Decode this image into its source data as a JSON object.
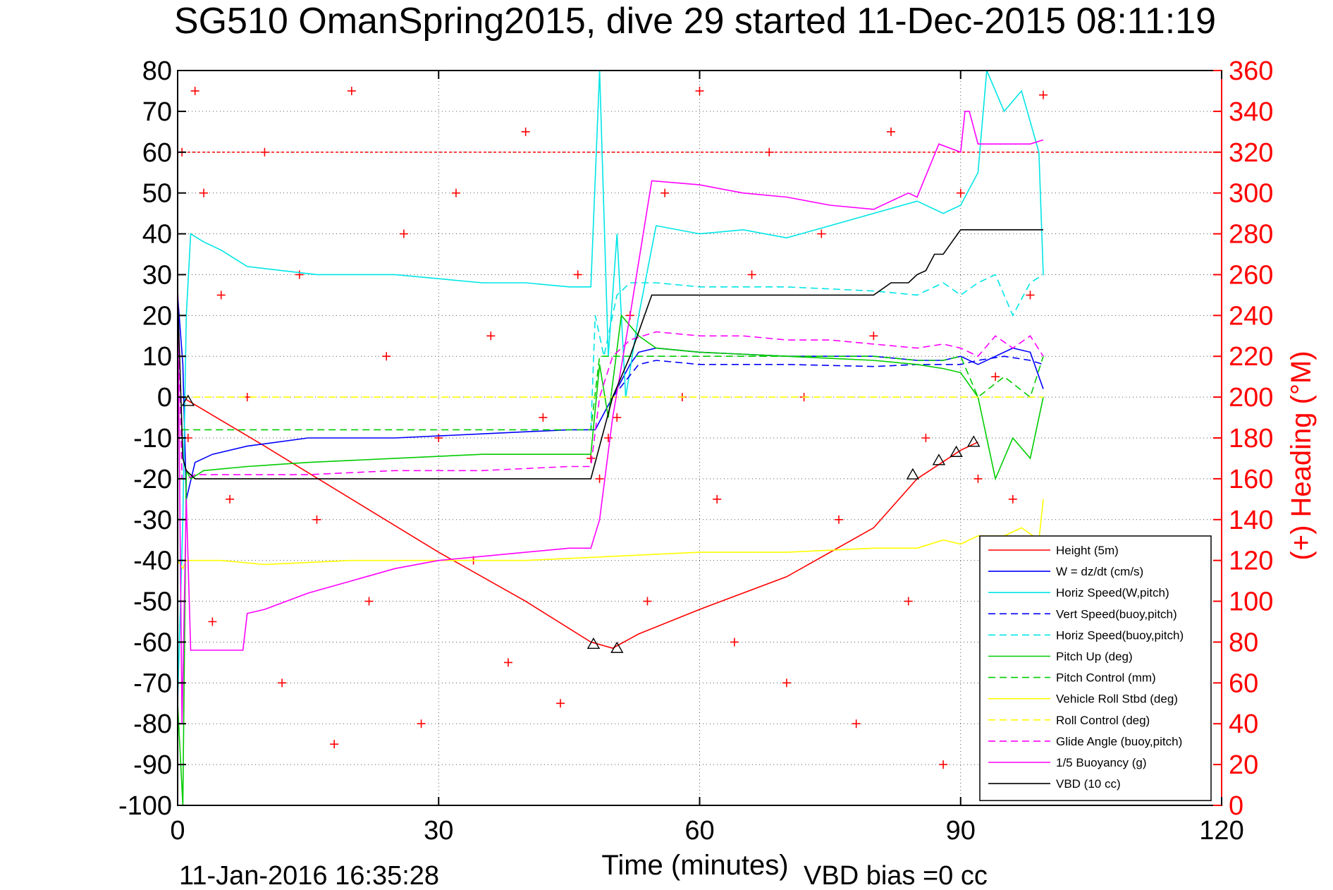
{
  "chart_data": {
    "type": "line",
    "title": "SG510 OmanSpring2015, dive 29 started 11-Dec-2015 08:11:19",
    "xlabel": "Time (minutes)",
    "ylabel_left": "",
    "ylabel_right": "(+) Heading (°M)",
    "xlim": [
      0,
      120
    ],
    "ylim_left": [
      -100,
      80
    ],
    "ylim_right": [
      0,
      360
    ],
    "x_ticks": [
      "0",
      "30",
      "60",
      "90",
      "120"
    ],
    "y_ticks_left": [
      "80",
      "70",
      "60",
      "50",
      "40",
      "30",
      "20",
      "10",
      "0",
      "-10",
      "-20",
      "-30",
      "-40",
      "-50",
      "-60",
      "-70",
      "-80",
      "-90",
      "-100"
    ],
    "y_ticks_right": [
      "360",
      "340",
      "320",
      "300",
      "280",
      "260",
      "240",
      "220",
      "200",
      "180",
      "160",
      "140",
      "120",
      "100",
      "80",
      "60",
      "40",
      "20",
      "0"
    ],
    "grid": true,
    "legend_position": "bottom-right",
    "footer_date": "11-Jan-2016 16:35:28",
    "footer_note": "VBD bias =0 cc",
    "colors": {
      "red": "#ff0000",
      "blue": "#0000ff",
      "cyan": "#00e5e5",
      "green": "#00cc00",
      "yellow": "#ffff00",
      "magenta": "#ff00ff",
      "black": "#000000"
    },
    "series": [
      {
        "name": "Height (5m)",
        "color": "#ff0000",
        "dash": false,
        "x": [
          0.5,
          10,
          20,
          30,
          40,
          47.5,
          50,
          53,
          60,
          70,
          80,
          85,
          90,
          92
        ],
        "y": [
          0,
          -12,
          -25,
          -38,
          -50,
          -60,
          -61.5,
          -58,
          -52,
          -44,
          -32,
          -20,
          -13,
          -11
        ]
      },
      {
        "name": "W = dz/dt (cm/s)",
        "color": "#0000ff",
        "dash": false,
        "x": [
          0,
          0.6,
          1,
          2,
          4,
          8,
          15,
          25,
          35,
          45,
          48,
          49,
          50,
          51,
          52,
          53,
          55,
          60,
          70,
          80,
          85,
          88,
          90,
          92,
          94,
          96,
          98,
          99.5
        ],
        "y": [
          25,
          8,
          -25,
          -16,
          -14,
          -12,
          -10,
          -10,
          -9,
          -8,
          -8,
          -4,
          0,
          4,
          8,
          11,
          12,
          11,
          10,
          10,
          9,
          9,
          10,
          8,
          10,
          12,
          11,
          2
        ]
      },
      {
        "name": "Horiz Speed(W,pitch)",
        "color": "#00e5e5",
        "dash": false,
        "x": [
          0,
          0.6,
          1,
          1.5,
          3,
          5,
          8,
          12,
          16,
          20,
          25,
          30,
          35,
          40,
          45,
          47.5,
          48.5,
          49.5,
          50.5,
          51.5,
          53,
          55,
          60,
          65,
          70,
          75,
          80,
          85,
          88,
          90,
          92,
          93,
          95,
          97,
          99,
          99.5
        ],
        "y": [
          -75,
          -30,
          20,
          40,
          38,
          36,
          32,
          31,
          30,
          30,
          30,
          29,
          28,
          28,
          27,
          27,
          80,
          10,
          40,
          0,
          20,
          42,
          40,
          41,
          39,
          42,
          45,
          48,
          45,
          47,
          55,
          80,
          70,
          75,
          60,
          30
        ]
      },
      {
        "name": "Vert Speed(buoy,pitch)",
        "color": "#0000ff",
        "dash": true,
        "x": [
          50,
          53,
          55,
          60,
          70,
          80,
          85,
          90,
          92,
          95,
          98,
          99.5
        ],
        "y": [
          0,
          8,
          9,
          8,
          8,
          7.5,
          8,
          8,
          9,
          10,
          9,
          8
        ]
      },
      {
        "name": "Horiz Speed(buoy,pitch)",
        "color": "#00e5e5",
        "dash": true,
        "x": [
          47.5,
          48,
          49,
          50.5,
          52,
          53,
          55,
          60,
          70,
          80,
          85,
          88,
          90,
          92,
          94,
          96,
          98,
          99.5
        ],
        "y": [
          -8,
          20,
          10,
          25,
          28,
          28,
          28,
          27,
          27,
          26,
          25,
          28,
          25,
          28,
          30,
          20,
          28,
          30
        ]
      },
      {
        "name": "Pitch Up (deg)",
        "color": "#00cc00",
        "dash": false,
        "x": [
          0,
          0.6,
          1,
          1.5,
          3,
          8,
          15,
          25,
          35,
          45,
          47.5,
          48.5,
          49.5,
          51,
          53,
          55,
          60,
          70,
          80,
          85,
          88,
          90,
          92,
          94,
          96,
          98,
          99.5
        ],
        "y": [
          -75,
          -100,
          -18,
          -20,
          -18,
          -17,
          -16,
          -15,
          -14,
          -14,
          -14,
          8,
          -5,
          20,
          15,
          12,
          11,
          10,
          9,
          8,
          7,
          6,
          0,
          -20,
          -10,
          -15,
          0
        ]
      },
      {
        "name": "Pitch Control (mm)",
        "color": "#00cc00",
        "dash": true,
        "x": [
          0.5,
          2,
          10,
          20,
          30,
          40,
          47.5,
          48.5,
          50,
          52,
          55,
          60,
          70,
          80,
          85,
          88,
          90,
          92,
          95,
          98,
          99.5
        ],
        "y": [
          -8,
          -8,
          -8,
          -8,
          -8,
          -8,
          -8,
          10,
          10,
          10,
          10,
          10,
          10,
          10,
          9,
          9,
          10,
          0,
          5,
          0,
          10
        ]
      },
      {
        "name": "Vehicle Roll Stbd (deg)",
        "color": "#ffff00",
        "dash": false,
        "x": [
          0,
          0.6,
          1,
          5,
          10,
          20,
          30,
          40,
          50,
          60,
          70,
          80,
          85,
          88,
          90,
          92,
          95,
          97,
          99,
          99.5
        ],
        "y": [
          -40,
          -42,
          -40,
          -40,
          -41,
          -40,
          -40,
          -40,
          -39,
          -38,
          -38,
          -37,
          -37,
          -35,
          -36,
          -34,
          -34,
          -32,
          -35,
          -25
        ]
      },
      {
        "name": "Roll Control (deg)",
        "color": "#ffff00",
        "dash": true,
        "x": [
          0.5,
          10,
          20,
          30,
          40,
          50,
          60,
          70,
          80,
          90,
          99.5
        ],
        "y": [
          0,
          0,
          0,
          0,
          0,
          0,
          0,
          0,
          0,
          0,
          0
        ]
      },
      {
        "name": "Glide Angle (buoy,pitch)",
        "color": "#ff00ff",
        "dash": true,
        "x": [
          0,
          0.5,
          1,
          2,
          8,
          15,
          25,
          35,
          45,
          47.5,
          48.5,
          50,
          52,
          55,
          60,
          65,
          70,
          75,
          80,
          85,
          88,
          90,
          92,
          94,
          96,
          98,
          99.5
        ],
        "y": [
          28,
          -20,
          -20,
          -19,
          -19,
          -19,
          -18,
          -18,
          -17,
          -17,
          0,
          10,
          14,
          16,
          15,
          15,
          14,
          14,
          13,
          12,
          13,
          12,
          10,
          15,
          12,
          15,
          10
        ]
      },
      {
        "name": "1/5 Buoyancy (g)",
        "color": "#ff00ff",
        "dash": false,
        "x": [
          0,
          0.5,
          1,
          1.5,
          4,
          7.5,
          8,
          10,
          15,
          20,
          25,
          30,
          35,
          40,
          45,
          47.5,
          48.5,
          50,
          52,
          54.5,
          60,
          65,
          70,
          75,
          80,
          82,
          84,
          85,
          87.5,
          90,
          90.5,
          91,
          92,
          95,
          98,
          99.5
        ],
        "y": [
          28,
          -80,
          -25,
          -62,
          -62,
          -62,
          -53,
          -52,
          -48,
          -45,
          -42,
          -40,
          -39,
          -38,
          -37,
          -37,
          -30,
          -5,
          20,
          53,
          52,
          50,
          49,
          47,
          46,
          48,
          50,
          49,
          62,
          60,
          70,
          70,
          62,
          62,
          62,
          63
        ]
      },
      {
        "name": "VBD (10 cc)",
        "color": "#000000",
        "dash": false,
        "x": [
          0,
          0.6,
          1,
          2,
          8,
          20,
          30,
          40,
          47.5,
          50,
          52,
          54.5,
          60,
          70,
          80,
          82,
          84,
          85,
          86,
          87,
          88,
          89,
          90,
          93,
          99.5
        ],
        "y": [
          25,
          -15,
          -18,
          -20,
          -20,
          -20,
          -20,
          -20,
          -20,
          0,
          10,
          25,
          25,
          25,
          25,
          28,
          28,
          30,
          31,
          35,
          35,
          38,
          41,
          41,
          41
        ]
      }
    ],
    "heading": {
      "name": "Heading",
      "axis": "right",
      "marker": "+",
      "color": "#ff0000",
      "x": [
        0.5,
        1.2,
        2,
        3,
        4,
        5,
        6,
        8,
        10,
        12,
        14,
        16,
        18,
        20,
        22,
        24,
        26,
        28,
        30,
        32,
        34,
        36,
        38,
        40,
        42,
        44,
        46,
        47.5,
        48.5,
        49.5,
        50.5,
        52,
        54,
        56,
        58,
        60,
        62,
        64,
        66,
        68,
        70,
        72,
        74,
        76,
        78,
        80,
        82,
        84,
        86,
        88,
        90,
        92,
        94,
        96,
        98,
        99.5
      ],
      "y": [
        320,
        180,
        350,
        300,
        90,
        250,
        150,
        200,
        320,
        60,
        260,
        140,
        30,
        350,
        100,
        220,
        280,
        40,
        180,
        300,
        120,
        230,
        70,
        330,
        190,
        50,
        260,
        170,
        160,
        180,
        190,
        240,
        100,
        300,
        200,
        350,
        150,
        80,
        260,
        320,
        60,
        200,
        280,
        140,
        40,
        230,
        330,
        100,
        180,
        20,
        300,
        160,
        210,
        150,
        250,
        348
      ]
    },
    "triangles": {
      "name": "",
      "marker": "triangle",
      "color": "#000000",
      "x": [
        1.2,
        47.8,
        50.5,
        84.5,
        87.5,
        89.5,
        91.5
      ],
      "y": [
        -1,
        -60.5,
        -61.5,
        -19,
        -15.5,
        -13.5,
        -11
      ]
    },
    "heading_ref_line": {
      "value": 320,
      "axis": "right",
      "color": "#ff0000",
      "dash": true
    }
  }
}
